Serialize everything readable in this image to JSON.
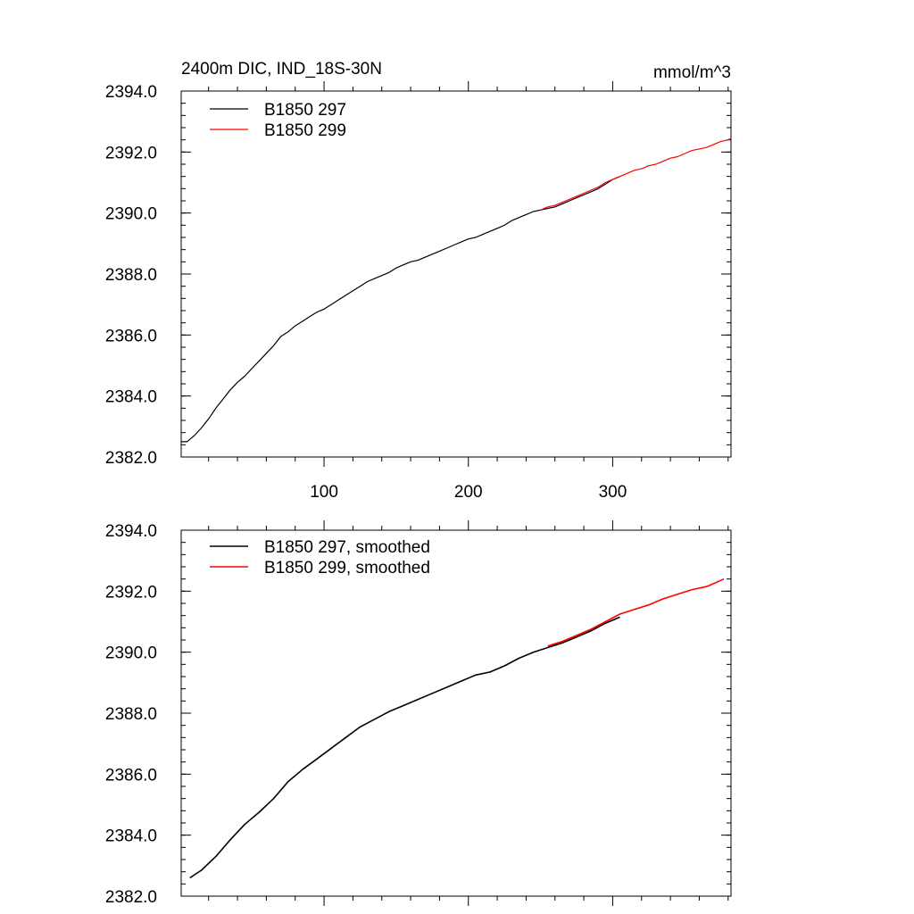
{
  "chart_data": [
    {
      "type": "line",
      "title": "2400m DIC, IND_18S-30N",
      "units": "mmol/m^3",
      "xlim": [
        1,
        382
      ],
      "ylim": [
        2382.0,
        2394.0
      ],
      "x_ticks": [
        100,
        200,
        300
      ],
      "y_ticks": [
        "2382.0",
        "2384.0",
        "2386.0",
        "2388.0",
        "2390.0",
        "2392.0",
        "2394.0"
      ],
      "legend_position": "top-left",
      "series": [
        {
          "name": "B1850 297",
          "color": "#000000",
          "points": [
            [
              1,
              2382.5
            ],
            [
              5,
              2382.5
            ],
            [
              10,
              2382.7
            ],
            [
              15,
              2382.95
            ],
            [
              20,
              2383.25
            ],
            [
              25,
              2383.6
            ],
            [
              30,
              2383.9
            ],
            [
              35,
              2384.2
            ],
            [
              40,
              2384.45
            ],
            [
              45,
              2384.65
            ],
            [
              50,
              2384.9
            ],
            [
              55,
              2385.15
            ],
            [
              60,
              2385.4
            ],
            [
              65,
              2385.65
            ],
            [
              70,
              2385.95
            ],
            [
              75,
              2386.1
            ],
            [
              80,
              2386.3
            ],
            [
              85,
              2386.45
            ],
            [
              90,
              2386.6
            ],
            [
              95,
              2386.75
            ],
            [
              100,
              2386.85
            ],
            [
              105,
              2387.0
            ],
            [
              110,
              2387.15
            ],
            [
              115,
              2387.3
            ],
            [
              120,
              2387.45
            ],
            [
              125,
              2387.6
            ],
            [
              130,
              2387.75
            ],
            [
              135,
              2387.85
            ],
            [
              140,
              2387.95
            ],
            [
              145,
              2388.05
            ],
            [
              150,
              2388.2
            ],
            [
              155,
              2388.3
            ],
            [
              160,
              2388.4
            ],
            [
              165,
              2388.45
            ],
            [
              170,
              2388.55
            ],
            [
              175,
              2388.65
            ],
            [
              180,
              2388.75
            ],
            [
              185,
              2388.85
            ],
            [
              190,
              2388.95
            ],
            [
              195,
              2389.05
            ],
            [
              200,
              2389.15
            ],
            [
              205,
              2389.2
            ],
            [
              210,
              2389.3
            ],
            [
              215,
              2389.4
            ],
            [
              220,
              2389.5
            ],
            [
              225,
              2389.6
            ],
            [
              230,
              2389.75
            ],
            [
              235,
              2389.85
            ],
            [
              240,
              2389.95
            ],
            [
              245,
              2390.05
            ],
            [
              250,
              2390.1
            ],
            [
              255,
              2390.15
            ],
            [
              260,
              2390.2
            ],
            [
              265,
              2390.3
            ],
            [
              270,
              2390.4
            ],
            [
              275,
              2390.5
            ],
            [
              280,
              2390.6
            ],
            [
              285,
              2390.7
            ],
            [
              290,
              2390.8
            ],
            [
              295,
              2390.95
            ],
            [
              300,
              2391.1
            ],
            [
              305,
              2391.2
            ]
          ]
        },
        {
          "name": "B1850 299",
          "color": "#ff0000",
          "points": [
            [
              250,
              2390.1
            ],
            [
              255,
              2390.2
            ],
            [
              260,
              2390.25
            ],
            [
              265,
              2390.35
            ],
            [
              270,
              2390.45
            ],
            [
              275,
              2390.55
            ],
            [
              280,
              2390.65
            ],
            [
              285,
              2390.75
            ],
            [
              290,
              2390.85
            ],
            [
              295,
              2391.0
            ],
            [
              300,
              2391.1
            ],
            [
              305,
              2391.2
            ],
            [
              310,
              2391.3
            ],
            [
              315,
              2391.4
            ],
            [
              320,
              2391.45
            ],
            [
              325,
              2391.55
            ],
            [
              330,
              2391.6
            ],
            [
              335,
              2391.7
            ],
            [
              340,
              2391.8
            ],
            [
              345,
              2391.85
            ],
            [
              350,
              2391.95
            ],
            [
              355,
              2392.05
            ],
            [
              360,
              2392.1
            ],
            [
              365,
              2392.15
            ],
            [
              370,
              2392.25
            ],
            [
              375,
              2392.35
            ],
            [
              380,
              2392.4
            ],
            [
              382,
              2392.45
            ]
          ]
        }
      ]
    },
    {
      "type": "line",
      "title": "",
      "units": "",
      "xlim": [
        1,
        382
      ],
      "ylim": [
        2382.0,
        2394.0
      ],
      "x_ticks": [
        100,
        200,
        300
      ],
      "y_ticks": [
        "2382.0",
        "2384.0",
        "2386.0",
        "2388.0",
        "2390.0",
        "2392.0",
        "2394.0"
      ],
      "legend_position": "top-left",
      "series": [
        {
          "name": "B1850 297, smoothed",
          "color": "#000000",
          "points": [
            [
              7,
              2382.6
            ],
            [
              15,
              2382.85
            ],
            [
              25,
              2383.3
            ],
            [
              35,
              2383.85
            ],
            [
              45,
              2384.35
            ],
            [
              55,
              2384.75
            ],
            [
              65,
              2385.2
            ],
            [
              75,
              2385.75
            ],
            [
              85,
              2386.15
            ],
            [
              95,
              2386.5
            ],
            [
              105,
              2386.85
            ],
            [
              115,
              2387.2
            ],
            [
              125,
              2387.55
            ],
            [
              135,
              2387.8
            ],
            [
              145,
              2388.05
            ],
            [
              155,
              2388.25
            ],
            [
              165,
              2388.45
            ],
            [
              175,
              2388.65
            ],
            [
              185,
              2388.85
            ],
            [
              195,
              2389.05
            ],
            [
              205,
              2389.25
            ],
            [
              215,
              2389.35
            ],
            [
              225,
              2389.55
            ],
            [
              235,
              2389.8
            ],
            [
              245,
              2390.0
            ],
            [
              255,
              2390.15
            ],
            [
              265,
              2390.3
            ],
            [
              275,
              2390.5
            ],
            [
              285,
              2390.7
            ],
            [
              295,
              2390.95
            ],
            [
              305,
              2391.15
            ]
          ]
        },
        {
          "name": "B1850 299, smoothed",
          "color": "#ff0000",
          "points": [
            [
              255,
              2390.2
            ],
            [
              265,
              2390.35
            ],
            [
              275,
              2390.55
            ],
            [
              285,
              2390.75
            ],
            [
              295,
              2391.0
            ],
            [
              305,
              2391.25
            ],
            [
              315,
              2391.4
            ],
            [
              325,
              2391.55
            ],
            [
              335,
              2391.75
            ],
            [
              345,
              2391.9
            ],
            [
              355,
              2392.05
            ],
            [
              365,
              2392.15
            ],
            [
              370,
              2392.25
            ],
            [
              377,
              2392.4
            ]
          ]
        }
      ]
    }
  ]
}
